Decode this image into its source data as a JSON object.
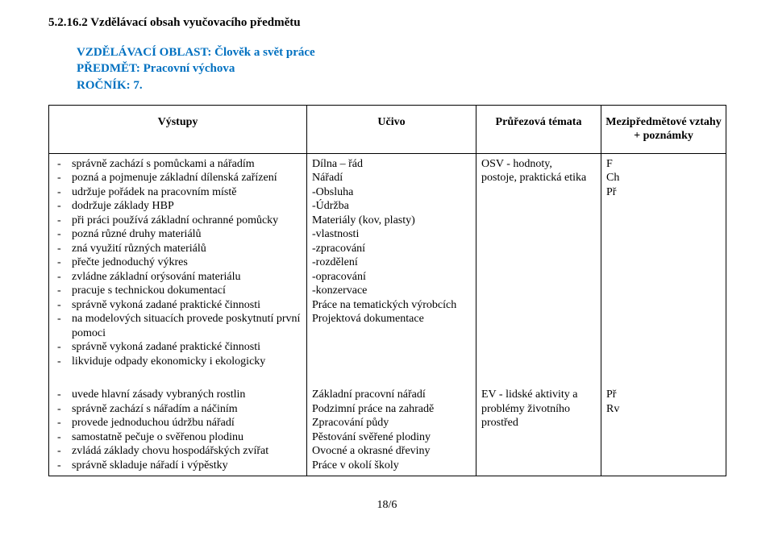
{
  "heading": "5.2.16.2  Vzdělávací obsah vyučovacího předmětu",
  "blue": {
    "line1": "VZDĚLÁVACÍ OBLAST: Člověk a svět práce",
    "line2": "PŘEDMĚT: Pracovní výchova",
    "line3": "ROČNÍK: 7."
  },
  "table_header": {
    "col1": "Výstupy",
    "col2": "Učivo",
    "col3": "Průřezová témata",
    "col4": "Mezipředmětové vztahy + poznámky"
  },
  "row1": {
    "outputs": [
      "správně zachází s pomůckami a nářadím",
      "pozná a pojmenuje základní dílenská zařízení",
      "udržuje pořádek na pracovním místě",
      "dodržuje základy HBP",
      "při práci používá základní ochranné pomůcky",
      "pozná různé druhy materiálů",
      "zná využití různých materiálů",
      "přečte jednoduchý výkres",
      "zvládne základní orýsování materiálu",
      "pracuje s technickou dokumentací",
      "správně vykoná zadané praktické činnosti",
      "na modelových situacích provede poskytnutí první pomoci",
      "správně vykoná zadané praktické činnosti",
      "likviduje odpady ekonomicky i ekologicky"
    ],
    "ucivo": [
      "Dílna – řád",
      "Nářadí",
      "-Obsluha",
      "-Údržba",
      "Materiály (kov, plasty)",
      "-vlastnosti",
      "-zpracování",
      "-rozdělení",
      "-opracování",
      "-konzervace",
      "Práce na tematických výrobcích",
      "Projektová dokumentace"
    ],
    "themes": [
      "OSV - hodnoty,",
      "postoje, praktická etika"
    ],
    "links": [
      "F",
      "Ch",
      "Př"
    ]
  },
  "row2": {
    "outputs": [
      "uvede hlavní zásady vybraných rostlin",
      "správně zachází s nářadím a náčiním",
      "provede jednoduchou údržbu nářadí",
      "samostatně pečuje o svěřenou plodinu",
      "zvládá základy chovu hospodářských zvířat",
      "správně skladuje nářadí i výpěstky"
    ],
    "ucivo": [
      "Základní pracovní nářadí",
      "Podzimní práce na zahradě",
      "Zpracování půdy",
      "Pěstování svěřené plodiny",
      "Ovocné a okrasné dřeviny",
      "Práce v okolí školy"
    ],
    "themes": [
      "EV - lidské aktivity a",
      "problémy životního",
      "prostřed"
    ],
    "links": [
      "Př",
      "Rv"
    ]
  },
  "footer": "18/6"
}
